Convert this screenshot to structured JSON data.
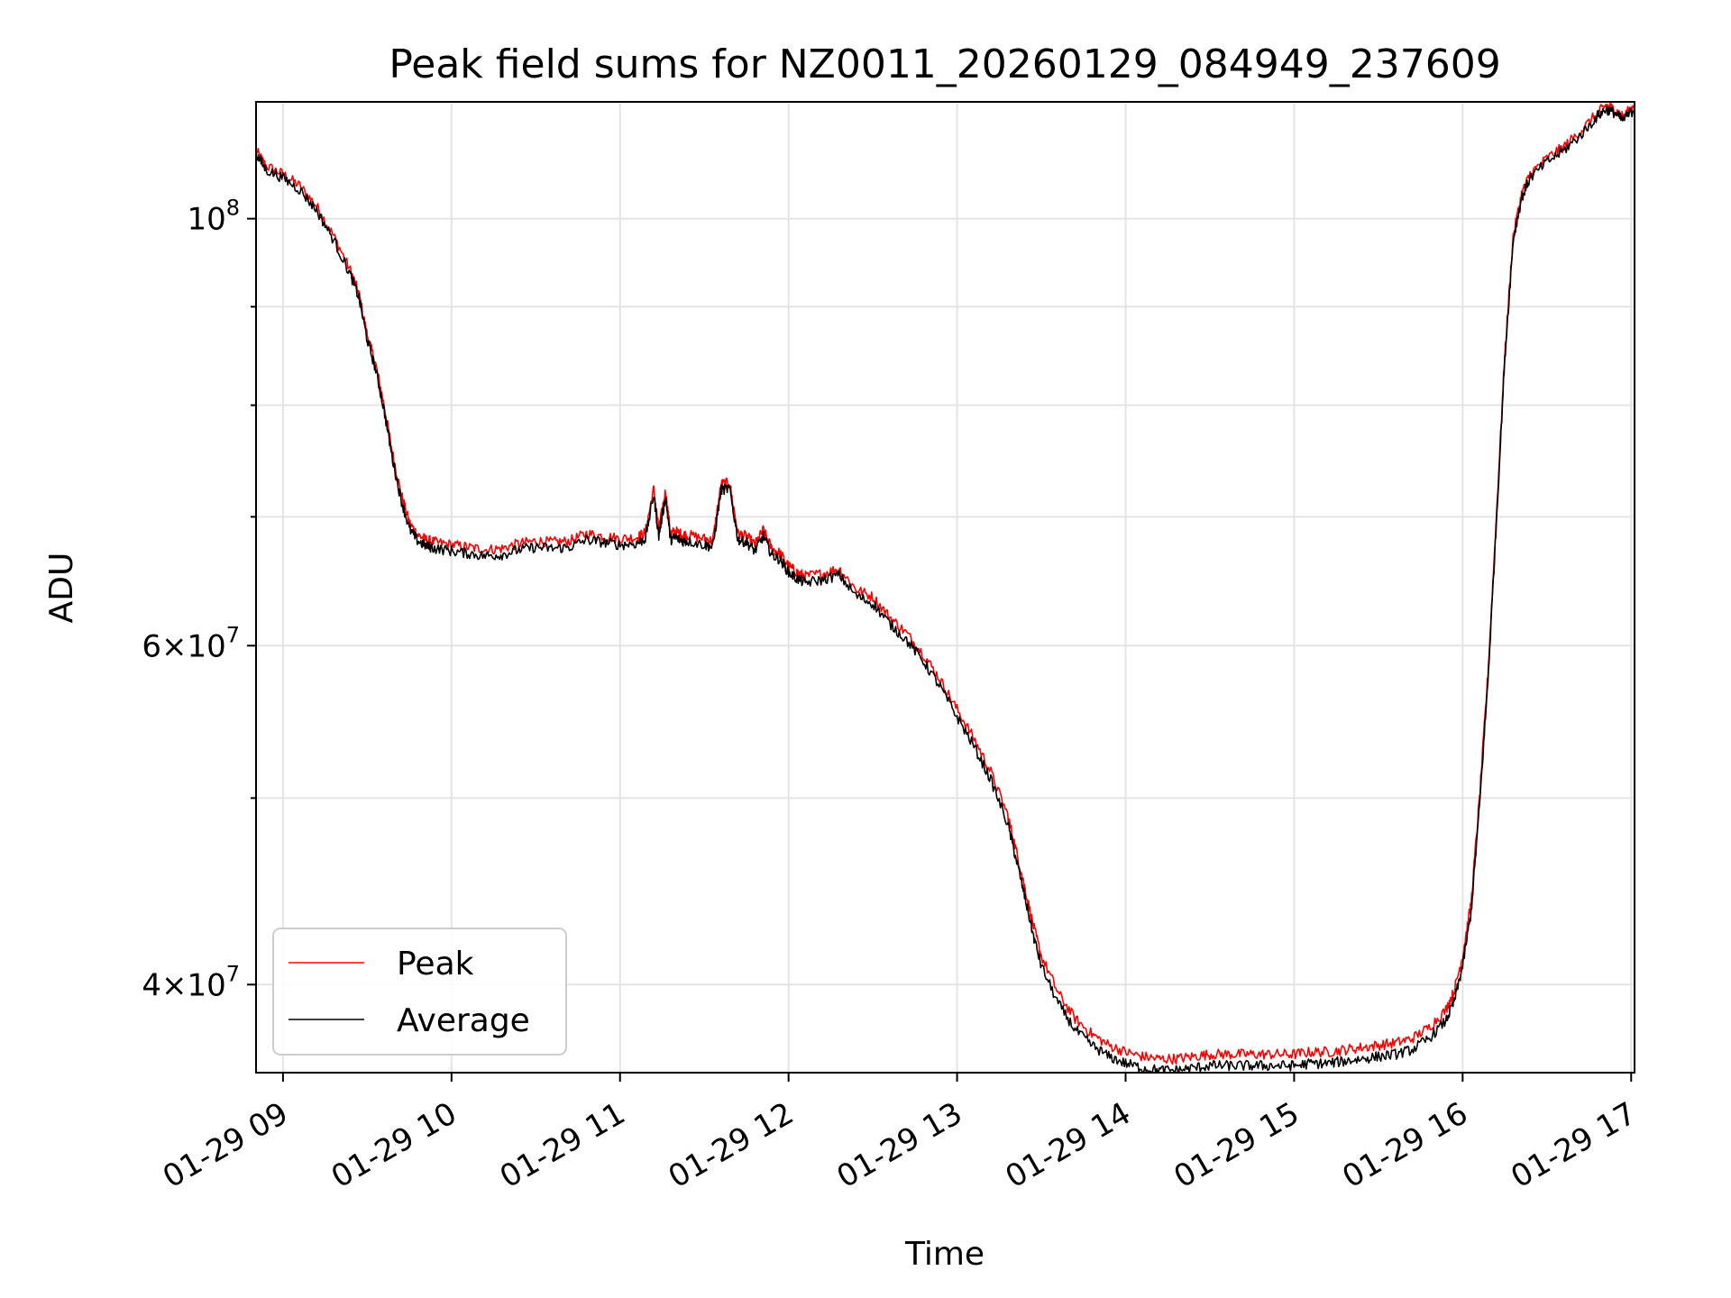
{
  "chart_data": {
    "type": "line",
    "title": "Peak field sums for NZ0011_20260129_084949_237609",
    "xlabel": "Time",
    "ylabel": "ADU",
    "yscale": "log",
    "xlim": [
      8.84,
      17.02
    ],
    "ylim": [
      36000000,
      115000000
    ],
    "grid": true,
    "legend_position": "lower-left",
    "x_tick_values": [
      9,
      10,
      11,
      12,
      13,
      14,
      15,
      16,
      17
    ],
    "x_tick_labels": [
      "01-29 09",
      "01-29 10",
      "01-29 11",
      "01-29 12",
      "01-29 13",
      "01-29 14",
      "01-29 15",
      "01-29 16",
      "01-29 17"
    ],
    "y_major_ticks": [
      {
        "value": 100000000,
        "base": "10",
        "exp": "8"
      },
      {
        "value": 60000000,
        "mantissa": "6",
        "times": "×",
        "base": "10",
        "exp": "7"
      },
      {
        "value": 40000000,
        "mantissa": "4",
        "times": "×",
        "base": "10",
        "exp": "7"
      }
    ],
    "y_minor_ticks": [
      50000000,
      70000000,
      80000000,
      90000000
    ],
    "series": [
      {
        "name": "Peak",
        "color": "#ff0000",
        "x": [
          8.84,
          8.9,
          9.0,
          9.1,
          9.2,
          9.3,
          9.4,
          9.45,
          9.5,
          9.55,
          9.6,
          9.65,
          9.7,
          9.75,
          9.8,
          9.85,
          9.9,
          10.0,
          10.1,
          10.2,
          10.3,
          10.4,
          10.5,
          10.6,
          10.7,
          10.8,
          10.9,
          11.0,
          11.1,
          11.15,
          11.2,
          11.23,
          11.27,
          11.3,
          11.33,
          11.37,
          11.4,
          11.5,
          11.55,
          11.6,
          11.65,
          11.7,
          11.75,
          11.8,
          11.85,
          11.9,
          11.95,
          12.0,
          12.05,
          12.1,
          12.2,
          12.3,
          12.4,
          12.5,
          12.6,
          12.7,
          12.8,
          12.9,
          13.0,
          13.1,
          13.2,
          13.3,
          13.35,
          13.4,
          13.45,
          13.5,
          13.6,
          13.7,
          13.8,
          13.9,
          14.0,
          14.1,
          14.2,
          14.3,
          14.4,
          14.5,
          14.6,
          14.7,
          14.8,
          14.9,
          15.0,
          15.1,
          15.2,
          15.3,
          15.4,
          15.5,
          15.6,
          15.7,
          15.8,
          15.9,
          15.95,
          16.0,
          16.05,
          16.1,
          16.15,
          16.2,
          16.25,
          16.3,
          16.35,
          16.4,
          16.5,
          16.6,
          16.7,
          16.8,
          16.85,
          16.9,
          16.95,
          17.02
        ],
        "values": [
          108500000,
          106500000,
          105500000,
          104000000,
          101500000,
          98000000,
          94000000,
          91500000,
          87000000,
          84000000,
          80000000,
          75500000,
          72000000,
          69500000,
          68500000,
          68100000,
          67900000,
          67700000,
          67500000,
          67300000,
          67400000,
          67800000,
          68000000,
          67900000,
          68000000,
          68600000,
          68400000,
          68200000,
          68300000,
          68700000,
          72400000,
          68900000,
          72200000,
          68600000,
          68800000,
          68500000,
          68500000,
          68200000,
          68000000,
          72800000,
          72900000,
          68600000,
          68400000,
          67700000,
          68900000,
          67400000,
          67000000,
          66000000,
          65500000,
          65200000,
          65400000,
          65800000,
          64200000,
          63600000,
          62100000,
          60900000,
          59400000,
          57600000,
          55600000,
          53700000,
          51600000,
          49000000,
          47000000,
          45000000,
          43000000,
          41400000,
          39600000,
          38400000,
          37700000,
          37200000,
          36900000,
          36700000,
          36600000,
          36600000,
          36700000,
          36800000,
          36800000,
          36800000,
          36800000,
          36800000,
          36800000,
          36900000,
          36900000,
          37000000,
          37100000,
          37200000,
          37300000,
          37500000,
          38000000,
          38800000,
          39700000,
          41400000,
          44100000,
          50000000,
          58000000,
          70000000,
          85000000,
          98000000,
          103000000,
          105500000,
          107500000,
          109000000,
          111000000,
          113500000,
          114500000,
          114000000,
          113000000,
          114500000
        ]
      },
      {
        "name": "Average",
        "color": "#000000",
        "x": [
          8.84,
          8.9,
          9.0,
          9.1,
          9.2,
          9.3,
          9.4,
          9.45,
          9.5,
          9.55,
          9.6,
          9.65,
          9.7,
          9.75,
          9.8,
          9.85,
          9.9,
          10.0,
          10.1,
          10.2,
          10.3,
          10.4,
          10.5,
          10.6,
          10.7,
          10.8,
          10.9,
          11.0,
          11.1,
          11.15,
          11.2,
          11.23,
          11.27,
          11.3,
          11.33,
          11.37,
          11.4,
          11.5,
          11.55,
          11.6,
          11.65,
          11.7,
          11.75,
          11.8,
          11.85,
          11.9,
          11.95,
          12.0,
          12.05,
          12.1,
          12.2,
          12.3,
          12.4,
          12.5,
          12.6,
          12.7,
          12.8,
          12.9,
          13.0,
          13.1,
          13.2,
          13.3,
          13.35,
          13.4,
          13.45,
          13.5,
          13.6,
          13.7,
          13.8,
          13.9,
          14.0,
          14.1,
          14.2,
          14.3,
          14.4,
          14.5,
          14.6,
          14.7,
          14.8,
          14.9,
          15.0,
          15.1,
          15.2,
          15.3,
          15.4,
          15.5,
          15.6,
          15.7,
          15.8,
          15.9,
          15.95,
          16.0,
          16.05,
          16.1,
          16.15,
          16.2,
          16.25,
          16.3,
          16.35,
          16.4,
          16.5,
          16.6,
          16.7,
          16.8,
          16.85,
          16.9,
          16.95,
          17.02
        ],
        "values": [
          108000000,
          106000000,
          105000000,
          103500000,
          101000000,
          97500000,
          93500000,
          91000000,
          86500000,
          83500000,
          79500000,
          75000000,
          71500000,
          69000000,
          68000000,
          67600000,
          67400000,
          67200000,
          67000000,
          66800000,
          66900000,
          67300000,
          67500000,
          67400000,
          67500000,
          68100000,
          67900000,
          67700000,
          67800000,
          68200000,
          71900000,
          68400000,
          71700000,
          68100000,
          68300000,
          68000000,
          68000000,
          67700000,
          67500000,
          72300000,
          72400000,
          68100000,
          67900000,
          67200000,
          68400000,
          66900000,
          66500000,
          65500000,
          65000000,
          64700000,
          64900000,
          65300000,
          63700000,
          63100000,
          61600000,
          60400000,
          58900000,
          57100000,
          55100000,
          53200000,
          51100000,
          48500000,
          46500000,
          44500000,
          42500000,
          40900000,
          39100000,
          37900000,
          37200000,
          36700000,
          36400000,
          36200000,
          36100000,
          36100000,
          36200000,
          36300000,
          36300000,
          36300000,
          36300000,
          36300000,
          36300000,
          36400000,
          36400000,
          36500000,
          36600000,
          36700000,
          36800000,
          37000000,
          37500000,
          38300000,
          39200000,
          40900000,
          43600000,
          49500000,
          57500000,
          69500000,
          84500000,
          97500000,
          102500000,
          105000000,
          107000000,
          108500000,
          110500000,
          113000000,
          114000000,
          113500000,
          112500000,
          114000000
        ]
      }
    ]
  }
}
